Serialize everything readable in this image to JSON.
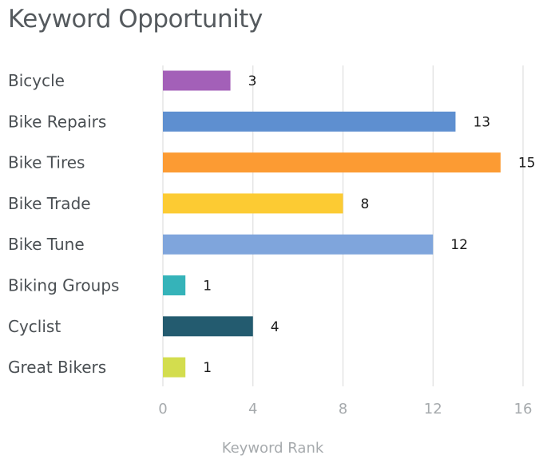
{
  "chart_data": {
    "type": "bar",
    "orientation": "horizontal",
    "title": "Keyword Opportunity",
    "xlabel": "Keyword Rank",
    "ylabel": "",
    "categories": [
      "Bicycle",
      "Bike Repairs",
      "Bike Tires",
      "Bike Trade",
      "Bike Tune",
      "Biking Groups",
      "Cyclist",
      "Great Bikers"
    ],
    "values": [
      3,
      13,
      15,
      8,
      12,
      1,
      4,
      1
    ],
    "colors": [
      "#a360b8",
      "#5e8fd0",
      "#fc9b33",
      "#fccb33",
      "#7fa5dc",
      "#35b3b9",
      "#235b6f",
      "#d3dd4e"
    ],
    "xticks": [
      0,
      4,
      8,
      12,
      16
    ],
    "xlim": [
      0,
      16
    ],
    "grid": true,
    "legend": "none"
  }
}
